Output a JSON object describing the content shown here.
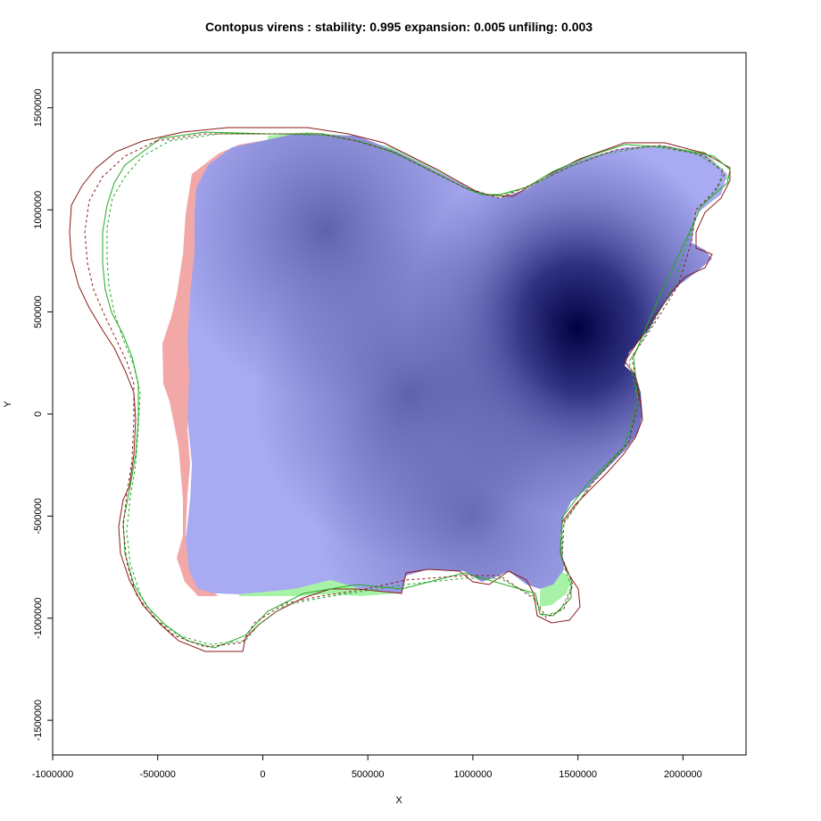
{
  "chart_data": {
    "type": "heatmap",
    "title": "Contopus virens : stability: 0.995 expansion: 0.005 unfiling: 0.003",
    "xlabel": "X",
    "ylabel": "Y",
    "xlim": [
      -1000000,
      2300000
    ],
    "ylim": [
      -1670000,
      1770000
    ],
    "x_ticks": [
      -1000000,
      -500000,
      0,
      500000,
      1000000,
      1500000,
      2000000
    ],
    "x_tick_labels": [
      "-1000000",
      "-500000",
      "0",
      "500000",
      "1000000",
      "1500000",
      "2000000"
    ],
    "y_ticks": [
      -1500000,
      -1000000,
      -500000,
      0,
      500000,
      1000000,
      1500000
    ],
    "y_tick_labels": [
      "-1500000",
      "-1000000",
      "-500000",
      "0",
      "500000",
      "1000000",
      "1500000"
    ],
    "density_peaks": [
      {
        "x": 1500000,
        "y": 420000,
        "intensity": 1.0
      },
      {
        "x": 300000,
        "y": 900000,
        "intensity": 0.75
      },
      {
        "x": 700000,
        "y": 100000,
        "intensity": 0.75
      },
      {
        "x": 1000000,
        "y": -500000,
        "intensity": 0.6
      }
    ],
    "colors": {
      "density_low": "#a8aaf2",
      "density_high": "#000040",
      "unfilling": "#f3a8a8",
      "expansion": "#a8f2a8",
      "range_outline_1": "#8b1a1a",
      "range_outline_2": "#22aa22",
      "range_outline_dashed_1": "#8b1a1a",
      "range_outline_dashed_2": "#22aa22"
    }
  }
}
